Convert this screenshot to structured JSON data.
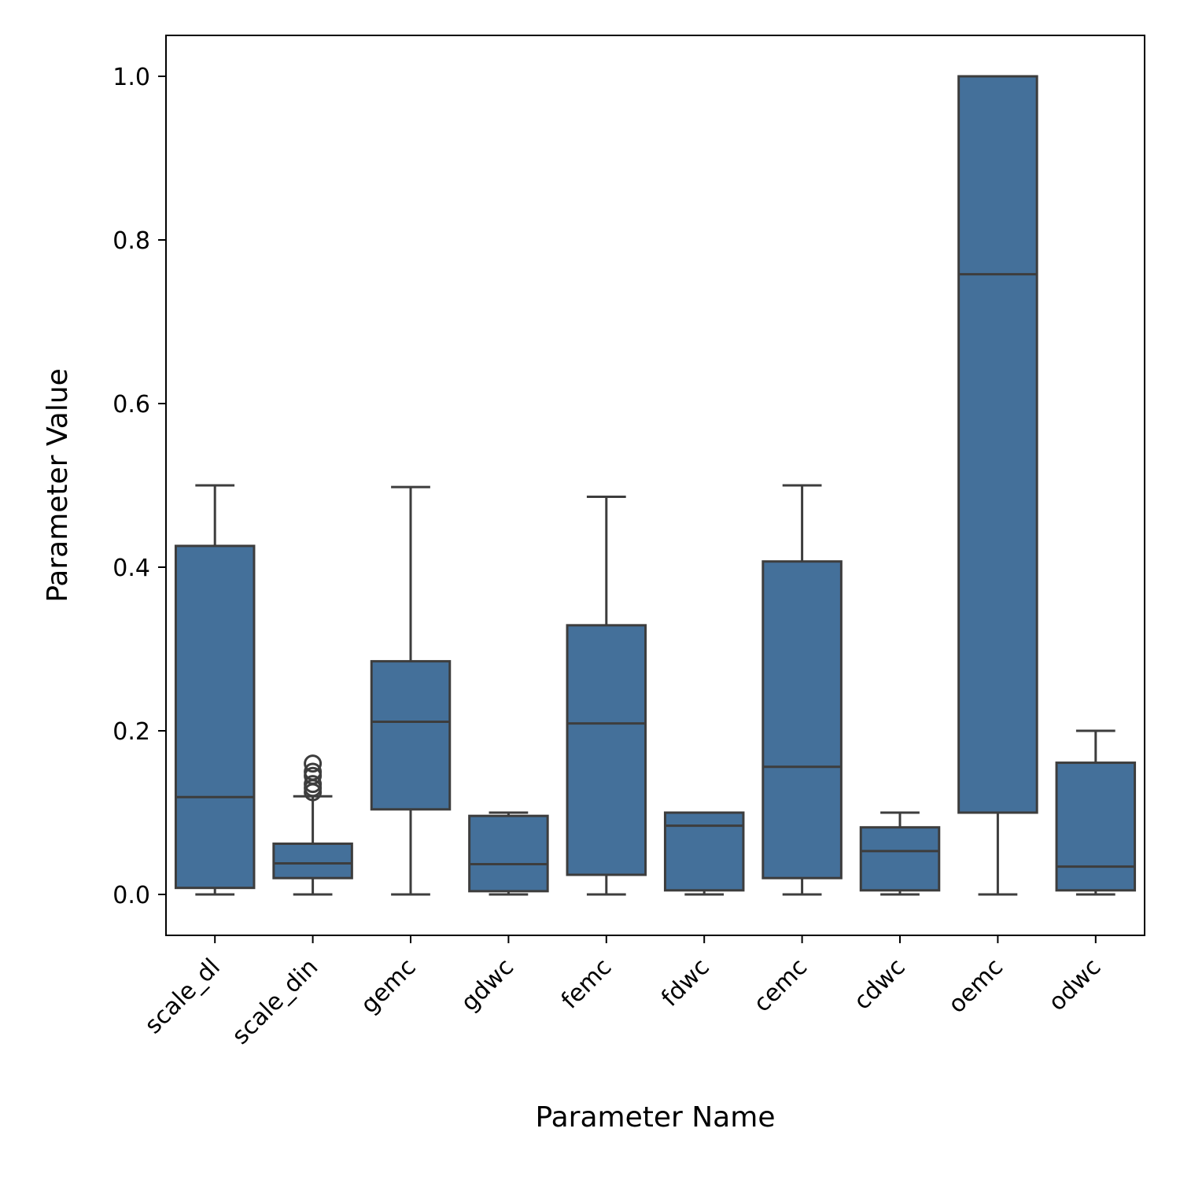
{
  "chart_data": {
    "type": "box",
    "xlabel": "Parameter Name",
    "ylabel": "Parameter Value",
    "ylim": [
      -0.05,
      1.05
    ],
    "yticks": [
      0.0,
      0.2,
      0.4,
      0.6,
      0.8,
      1.0
    ],
    "ytick_labels": [
      "0.0",
      "0.2",
      "0.4",
      "0.6",
      "0.8",
      "1.0"
    ],
    "grid": false,
    "box_color": "#44709a",
    "line_color": "#3d3d3d",
    "categories": [
      "scale_dl",
      "scale_din",
      "gemc",
      "gdwc",
      "femc",
      "fdwc",
      "cemc",
      "cdwc",
      "oemc",
      "odwc"
    ],
    "boxes": [
      {
        "name": "scale_dl",
        "whislo": 0.0,
        "q1": 0.008,
        "median": 0.119,
        "q3": 0.426,
        "whishi": 0.5,
        "fliers": []
      },
      {
        "name": "scale_din",
        "whislo": 0.0,
        "q1": 0.02,
        "median": 0.038,
        "q3": 0.062,
        "whishi": 0.12,
        "fliers": [
          0.125,
          0.13,
          0.135,
          0.145,
          0.15,
          0.16
        ]
      },
      {
        "name": "gemc",
        "whislo": 0.0,
        "q1": 0.104,
        "median": 0.211,
        "q3": 0.285,
        "whishi": 0.498,
        "fliers": []
      },
      {
        "name": "gdwc",
        "whislo": 0.0,
        "q1": 0.004,
        "median": 0.037,
        "q3": 0.096,
        "whishi": 0.1,
        "fliers": []
      },
      {
        "name": "femc",
        "whislo": 0.0,
        "q1": 0.024,
        "median": 0.209,
        "q3": 0.329,
        "whishi": 0.486,
        "fliers": []
      },
      {
        "name": "fdwc",
        "whislo": 0.0,
        "q1": 0.005,
        "median": 0.084,
        "q3": 0.1,
        "whishi": 0.1,
        "fliers": []
      },
      {
        "name": "cemc",
        "whislo": 0.0,
        "q1": 0.02,
        "median": 0.156,
        "q3": 0.407,
        "whishi": 0.5,
        "fliers": []
      },
      {
        "name": "cdwc",
        "whislo": 0.0,
        "q1": 0.005,
        "median": 0.053,
        "q3": 0.082,
        "whishi": 0.1,
        "fliers": []
      },
      {
        "name": "oemc",
        "whislo": 0.0,
        "q1": 0.1,
        "median": 0.758,
        "q3": 1.0,
        "whishi": 1.0,
        "fliers": []
      },
      {
        "name": "odwc",
        "whislo": 0.0,
        "q1": 0.005,
        "median": 0.034,
        "q3": 0.161,
        "whishi": 0.2,
        "fliers": []
      }
    ]
  }
}
